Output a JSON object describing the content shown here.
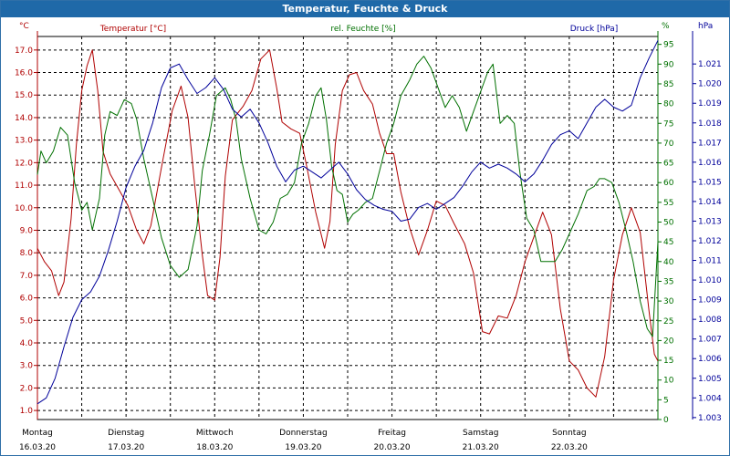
{
  "title": "Temperatur, Feuchte & Druck",
  "colors": {
    "temperature": "#b00000",
    "humidity": "#007000",
    "pressure": "#00009a",
    "grid": "#000000",
    "title_bg": "#1f69a8"
  },
  "chart_data": {
    "type": "line",
    "title": "Temperatur, Feuchte & Druck",
    "grid": true,
    "x_ticks": [
      {
        "day": "Montag",
        "date": "16.03.20"
      },
      {
        "day": "Dienstag",
        "date": "17.03.20"
      },
      {
        "day": "Mittwoch",
        "date": "18.03.20"
      },
      {
        "day": "Donnerstag",
        "date": "19.03.20"
      },
      {
        "day": "Freitag",
        "date": "20.03.20"
      },
      {
        "day": "Samstag",
        "date": "21.03.20"
      },
      {
        "day": "Sonntag",
        "date": "22.03.20"
      }
    ],
    "x_range_days": [
      0,
      7
    ],
    "axes": {
      "temperature": {
        "label": "Temperatur [°C]",
        "unit": "°C",
        "ylim": [
          0.6,
          17.6
        ],
        "ticks": [
          "1.0",
          "2.0",
          "3.0",
          "4.0",
          "5.0",
          "6.0",
          "7.0",
          "8.0",
          "9.0",
          "10.0",
          "11.0",
          "12.0",
          "13.0",
          "14.0",
          "15.0",
          "16.0",
          "17.0"
        ]
      },
      "humidity": {
        "label": "rel. Feuchte [%]",
        "unit": "%",
        "ylim": [
          0,
          97
        ],
        "ticks": [
          "0",
          "5",
          "10",
          "15",
          "20",
          "25",
          "30",
          "35",
          "40",
          "45",
          "50",
          "55",
          "60",
          "65",
          "70",
          "75",
          "80",
          "85",
          "90",
          "95"
        ]
      },
      "pressure": {
        "label": "Druck [hPa]",
        "unit": "hPa",
        "ylim": [
          1.0029,
          1.0224
        ],
        "ticks": [
          "1.003",
          "1.004",
          "1.005",
          "1.006",
          "1.007",
          "1.008",
          "1.009",
          "1.010",
          "1.011",
          "1.012",
          "1.013",
          "1.014",
          "1.015",
          "1.016",
          "1.017",
          "1.018",
          "1.019",
          "1.020",
          "1.021"
        ]
      }
    },
    "series": [
      {
        "name": "Temperatur [°C]",
        "axis": "temperature",
        "points": [
          [
            0.0,
            8.2
          ],
          [
            0.08,
            7.6
          ],
          [
            0.16,
            7.2
          ],
          [
            0.24,
            6.1
          ],
          [
            0.3,
            6.7
          ],
          [
            0.38,
            9.5
          ],
          [
            0.44,
            12.8
          ],
          [
            0.5,
            15.2
          ],
          [
            0.56,
            16.3
          ],
          [
            0.62,
            17.0
          ],
          [
            0.68,
            15.2
          ],
          [
            0.74,
            12.5
          ],
          [
            0.82,
            11.5
          ],
          [
            0.92,
            10.8
          ],
          [
            1.02,
            10.1
          ],
          [
            1.12,
            9.0
          ],
          [
            1.2,
            8.4
          ],
          [
            1.28,
            9.2
          ],
          [
            1.4,
            11.8
          ],
          [
            1.52,
            14.3
          ],
          [
            1.62,
            15.4
          ],
          [
            1.7,
            14.0
          ],
          [
            1.78,
            10.8
          ],
          [
            1.86,
            7.9
          ],
          [
            1.92,
            6.1
          ],
          [
            2.0,
            5.9
          ],
          [
            2.06,
            7.8
          ],
          [
            2.12,
            11.4
          ],
          [
            2.2,
            13.9
          ],
          [
            2.32,
            14.5
          ],
          [
            2.42,
            15.2
          ],
          [
            2.52,
            16.6
          ],
          [
            2.62,
            17.0
          ],
          [
            2.7,
            15.3
          ],
          [
            2.76,
            13.8
          ],
          [
            2.86,
            13.5
          ],
          [
            2.96,
            13.3
          ],
          [
            3.04,
            11.8
          ],
          [
            3.14,
            9.8
          ],
          [
            3.24,
            8.2
          ],
          [
            3.3,
            9.4
          ],
          [
            3.36,
            12.8
          ],
          [
            3.44,
            15.2
          ],
          [
            3.52,
            15.9
          ],
          [
            3.6,
            16.0
          ],
          [
            3.68,
            15.2
          ],
          [
            3.78,
            14.6
          ],
          [
            3.86,
            13.3
          ],
          [
            3.94,
            12.4
          ],
          [
            4.02,
            12.4
          ],
          [
            4.1,
            10.7
          ],
          [
            4.2,
            9.1
          ],
          [
            4.3,
            7.9
          ],
          [
            4.4,
            9.0
          ],
          [
            4.5,
            10.3
          ],
          [
            4.6,
            10.1
          ],
          [
            4.7,
            9.3
          ],
          [
            4.82,
            8.4
          ],
          [
            4.92,
            7.1
          ],
          [
            5.02,
            4.5
          ],
          [
            5.1,
            4.4
          ],
          [
            5.2,
            5.2
          ],
          [
            5.3,
            5.1
          ],
          [
            5.4,
            6.1
          ],
          [
            5.5,
            7.6
          ],
          [
            5.6,
            8.7
          ],
          [
            5.7,
            9.8
          ],
          [
            5.8,
            8.8
          ],
          [
            5.9,
            5.5
          ],
          [
            6.0,
            3.2
          ],
          [
            6.1,
            2.8
          ],
          [
            6.2,
            2.0
          ],
          [
            6.3,
            1.6
          ],
          [
            6.4,
            3.4
          ],
          [
            6.5,
            6.8
          ],
          [
            6.6,
            8.8
          ],
          [
            6.7,
            10.0
          ],
          [
            6.8,
            8.9
          ],
          [
            6.9,
            5.4
          ],
          [
            6.96,
            3.5
          ],
          [
            7.0,
            3.2
          ]
        ]
      },
      {
        "name": "rel. Feuchte [%]",
        "axis": "humidity",
        "points": [
          [
            0.0,
            62
          ],
          [
            0.04,
            68
          ],
          [
            0.1,
            65
          ],
          [
            0.18,
            68
          ],
          [
            0.26,
            74
          ],
          [
            0.34,
            72
          ],
          [
            0.42,
            60
          ],
          [
            0.5,
            53
          ],
          [
            0.56,
            55
          ],
          [
            0.62,
            48
          ],
          [
            0.7,
            56
          ],
          [
            0.76,
            72
          ],
          [
            0.82,
            78
          ],
          [
            0.9,
            77
          ],
          [
            0.98,
            81
          ],
          [
            1.06,
            80
          ],
          [
            1.12,
            76
          ],
          [
            1.2,
            66
          ],
          [
            1.3,
            56
          ],
          [
            1.4,
            46
          ],
          [
            1.5,
            39
          ],
          [
            1.6,
            36
          ],
          [
            1.7,
            38
          ],
          [
            1.8,
            49
          ],
          [
            1.86,
            63
          ],
          [
            1.94,
            72
          ],
          [
            2.02,
            82
          ],
          [
            2.12,
            84
          ],
          [
            2.18,
            81
          ],
          [
            2.24,
            76
          ],
          [
            2.3,
            66
          ],
          [
            2.4,
            56
          ],
          [
            2.5,
            48
          ],
          [
            2.58,
            47
          ],
          [
            2.66,
            50
          ],
          [
            2.74,
            56
          ],
          [
            2.82,
            57
          ],
          [
            2.9,
            60
          ],
          [
            2.98,
            70
          ],
          [
            3.06,
            75
          ],
          [
            3.14,
            82
          ],
          [
            3.2,
            84
          ],
          [
            3.26,
            76
          ],
          [
            3.32,
            64
          ],
          [
            3.38,
            58
          ],
          [
            3.44,
            57
          ],
          [
            3.5,
            50
          ],
          [
            3.56,
            52
          ],
          [
            3.62,
            53
          ],
          [
            3.7,
            55
          ],
          [
            3.78,
            56
          ],
          [
            3.86,
            63
          ],
          [
            3.94,
            70
          ],
          [
            4.02,
            75
          ],
          [
            4.1,
            82
          ],
          [
            4.2,
            86
          ],
          [
            4.28,
            90
          ],
          [
            4.36,
            92
          ],
          [
            4.44,
            89
          ],
          [
            4.52,
            84
          ],
          [
            4.6,
            79
          ],
          [
            4.68,
            82
          ],
          [
            4.76,
            79
          ],
          [
            4.84,
            73
          ],
          [
            4.92,
            78
          ],
          [
            5.0,
            83
          ],
          [
            5.08,
            88
          ],
          [
            5.14,
            90
          ],
          [
            5.22,
            75
          ],
          [
            5.3,
            77
          ],
          [
            5.38,
            75
          ],
          [
            5.44,
            63
          ],
          [
            5.52,
            51
          ],
          [
            5.6,
            48
          ],
          [
            5.68,
            40
          ],
          [
            5.76,
            40
          ],
          [
            5.84,
            40
          ],
          [
            5.92,
            43
          ],
          [
            6.0,
            47
          ],
          [
            6.1,
            52
          ],
          [
            6.2,
            58
          ],
          [
            6.28,
            59
          ],
          [
            6.34,
            61
          ],
          [
            6.4,
            61
          ],
          [
            6.48,
            60
          ],
          [
            6.56,
            55
          ],
          [
            6.64,
            48
          ],
          [
            6.72,
            40
          ],
          [
            6.8,
            30
          ],
          [
            6.88,
            23
          ],
          [
            6.94,
            21
          ],
          [
            7.0,
            45
          ]
        ]
      },
      {
        "name": "Druck [hPa]",
        "axis": "pressure",
        "points": [
          [
            0.0,
            1.0037
          ],
          [
            0.1,
            1.004
          ],
          [
            0.2,
            1.005
          ],
          [
            0.3,
            1.0066
          ],
          [
            0.4,
            1.0081
          ],
          [
            0.5,
            1.009
          ],
          [
            0.6,
            1.0094
          ],
          [
            0.7,
            1.0102
          ],
          [
            0.8,
            1.0115
          ],
          [
            0.9,
            1.013
          ],
          [
            1.0,
            1.0147
          ],
          [
            1.1,
            1.0158
          ],
          [
            1.2,
            1.0166
          ],
          [
            1.3,
            1.018
          ],
          [
            1.4,
            1.0198
          ],
          [
            1.5,
            1.0208
          ],
          [
            1.6,
            1.021
          ],
          [
            1.7,
            1.0202
          ],
          [
            1.8,
            1.0195
          ],
          [
            1.9,
            1.0198
          ],
          [
            2.0,
            1.0203
          ],
          [
            2.1,
            1.0197
          ],
          [
            2.2,
            1.0187
          ],
          [
            2.3,
            1.0183
          ],
          [
            2.4,
            1.0187
          ],
          [
            2.5,
            1.018
          ],
          [
            2.6,
            1.017
          ],
          [
            2.7,
            1.0158
          ],
          [
            2.8,
            1.015
          ],
          [
            2.9,
            1.0156
          ],
          [
            3.0,
            1.0158
          ],
          [
            3.1,
            1.0155
          ],
          [
            3.2,
            1.0152
          ],
          [
            3.3,
            1.0156
          ],
          [
            3.4,
            1.016
          ],
          [
            3.5,
            1.0154
          ],
          [
            3.6,
            1.0146
          ],
          [
            3.7,
            1.0141
          ],
          [
            3.8,
            1.0138
          ],
          [
            3.9,
            1.0136
          ],
          [
            4.0,
            1.0135
          ],
          [
            4.1,
            1.013
          ],
          [
            4.2,
            1.0131
          ],
          [
            4.3,
            1.0137
          ],
          [
            4.4,
            1.0139
          ],
          [
            4.5,
            1.0136
          ],
          [
            4.6,
            1.0139
          ],
          [
            4.7,
            1.0142
          ],
          [
            4.8,
            1.0148
          ],
          [
            4.9,
            1.0155
          ],
          [
            5.0,
            1.016
          ],
          [
            5.1,
            1.0157
          ],
          [
            5.2,
            1.0159
          ],
          [
            5.3,
            1.0157
          ],
          [
            5.4,
            1.0154
          ],
          [
            5.5,
            1.015
          ],
          [
            5.6,
            1.0154
          ],
          [
            5.7,
            1.0161
          ],
          [
            5.8,
            1.0169
          ],
          [
            5.9,
            1.0174
          ],
          [
            6.0,
            1.0176
          ],
          [
            6.1,
            1.0172
          ],
          [
            6.2,
            1.018
          ],
          [
            6.3,
            1.0188
          ],
          [
            6.4,
            1.0192
          ],
          [
            6.5,
            1.0188
          ],
          [
            6.6,
            1.0186
          ],
          [
            6.7,
            1.0189
          ],
          [
            6.8,
            1.0203
          ],
          [
            6.9,
            1.0213
          ],
          [
            7.0,
            1.0222
          ]
        ]
      }
    ]
  }
}
